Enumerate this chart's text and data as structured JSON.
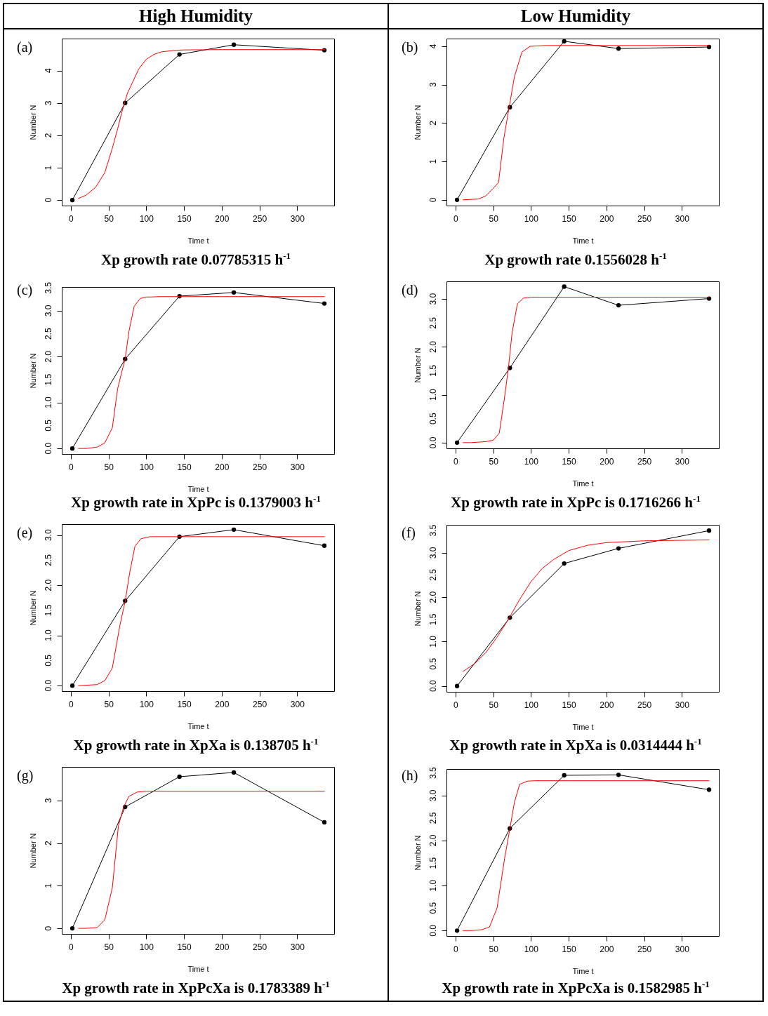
{
  "chart_data": [
    {
      "type": "line",
      "title": "High Humidity",
      "xlabel": "Time t",
      "ylabel": "Number N",
      "annotations": [
        "(a)",
        "Xp growth rate 0.07785315 h$^{-1}$"
      ],
      "xlim": [
        -12,
        349
      ],
      "xticks": [
        0,
        50,
        100,
        150,
        200,
        250,
        300
      ],
      "ylim": [
        -0.17,
        4.99
      ],
      "yticks": [
        0,
        1,
        2,
        3,
        4
      ],
      "series": [
        {
          "color": "#000000",
          "marker": "circle",
          "x": [
            2,
            72,
            144,
            216,
            336
          ],
          "values": [
            0,
            3.0,
            4.5,
            4.8,
            4.63
          ]
        },
        {
          "color": "#ff0000",
          "marker": "none",
          "x": [
            10,
            20,
            33,
            45,
            55,
            62,
            68,
            75,
            80,
            90,
            100,
            110,
            120,
            135,
            150,
            200,
            336
          ],
          "values": [
            0.05,
            0.15,
            0.4,
            0.85,
            1.6,
            2.2,
            2.75,
            3.3,
            3.55,
            4.05,
            4.35,
            4.5,
            4.58,
            4.62,
            4.64,
            4.65,
            4.65
          ]
        }
      ]
    },
    {
      "type": "line",
      "title": "Low Humidity",
      "xlabel": "Time t",
      "ylabel": "Number N",
      "annotations": [
        "(b)",
        "Xp growth rate 0.1556028 h$^{-1}$"
      ],
      "xlim": [
        -12,
        349
      ],
      "xticks": [
        0,
        50,
        100,
        150,
        200,
        250,
        300
      ],
      "ylim": [
        -0.15,
        4.2
      ],
      "yticks": [
        0,
        1,
        2,
        3,
        4
      ],
      "series": [
        {
          "color": "#000000",
          "marker": "circle",
          "x": [
            2,
            72,
            144,
            216,
            336
          ],
          "values": [
            0,
            2.41,
            4.13,
            3.94,
            3.98
          ]
        },
        {
          "color": "#ff0000",
          "marker": "none",
          "x": [
            10,
            30,
            40,
            50,
            57,
            64,
            71,
            78,
            88,
            99,
            120,
            200,
            336
          ],
          "values": [
            0,
            0.02,
            0.1,
            0.3,
            0.45,
            1.6,
            2.4,
            3.2,
            3.85,
            4.0,
            4.02,
            4.02,
            4.02
          ]
        }
      ]
    },
    {
      "type": "line",
      "xlabel": "Time t",
      "ylabel": "Number N",
      "annotations": [
        "(c)",
        "Xp growth rate in XpPc is 0.1379003 h$^{-1}$"
      ],
      "xlim": [
        -12,
        349
      ],
      "xticks": [
        0,
        50,
        100,
        150,
        200,
        250,
        300
      ],
      "ylim": [
        -0.12,
        3.52
      ],
      "yticks": [
        {
          "value": 0,
          "label": "0.0"
        },
        0.5,
        {
          "value": 1,
          "label": "1.0"
        },
        1.5,
        {
          "value": 2,
          "label": "2.0"
        },
        2.5,
        {
          "value": 3,
          "label": "3.0"
        },
        3.5
      ],
      "series": [
        {
          "color": "#000000",
          "marker": "circle",
          "x": [
            2,
            72,
            144,
            216,
            336
          ],
          "values": [
            0,
            1.95,
            3.32,
            3.4,
            3.16
          ]
        },
        {
          "color": "#ff0000",
          "marker": "none",
          "x": [
            10,
            20,
            35,
            45,
            55,
            62,
            68,
            72,
            77,
            84,
            92,
            100,
            120,
            200,
            336
          ],
          "values": [
            0,
            0,
            0.03,
            0.12,
            0.45,
            1.3,
            1.7,
            1.95,
            2.55,
            3.1,
            3.27,
            3.3,
            3.31,
            3.31,
            3.31
          ]
        }
      ]
    },
    {
      "type": "line",
      "xlabel": "Time t",
      "ylabel": "Number N",
      "annotations": [
        "(d)",
        "Xp growth rate in XpPc is 0.1716266 h$^{-1}$"
      ],
      "xlim": [
        -12,
        349
      ],
      "xticks": [
        0,
        50,
        100,
        150,
        200,
        250,
        300
      ],
      "ylim": [
        -0.12,
        3.37
      ],
      "yticks": [
        {
          "value": 0,
          "label": "0.0"
        },
        0.5,
        {
          "value": 1,
          "label": "1.0"
        },
        1.5,
        {
          "value": 2,
          "label": "2.0"
        },
        2.5,
        {
          "value": 3,
          "label": "3.0"
        }
      ],
      "series": [
        {
          "color": "#000000",
          "marker": "circle",
          "x": [
            2,
            72,
            144,
            216,
            336
          ],
          "values": [
            0,
            1.56,
            3.26,
            2.87,
            3.01
          ]
        },
        {
          "color": "#ff0000",
          "marker": "none",
          "x": [
            10,
            20,
            40,
            50,
            58,
            65,
            70,
            75,
            82,
            90,
            100,
            150,
            336
          ],
          "values": [
            0,
            0,
            0.02,
            0.05,
            0.2,
            0.95,
            1.55,
            2.3,
            2.9,
            3.02,
            3.04,
            3.04,
            3.04
          ]
        }
      ]
    },
    {
      "type": "line",
      "xlabel": "Time t",
      "ylabel": "Number N",
      "annotations": [
        "(e)",
        "Xp growth rate in XpXa is 0.138705 h$^{-1}$"
      ],
      "xlim": [
        -12,
        349
      ],
      "xticks": [
        0,
        50,
        100,
        150,
        200,
        250,
        300
      ],
      "ylim": [
        -0.11,
        3.22
      ],
      "yticks": [
        {
          "value": 0,
          "label": "0.0"
        },
        0.5,
        {
          "value": 1,
          "label": "1.0"
        },
        1.5,
        {
          "value": 2,
          "label": "2.0"
        },
        2.5,
        {
          "value": 3,
          "label": "3.0"
        }
      ],
      "series": [
        {
          "color": "#000000",
          "marker": "circle",
          "x": [
            2,
            72,
            144,
            216,
            336
          ],
          "values": [
            0,
            1.69,
            2.97,
            3.11,
            2.79
          ]
        },
        {
          "color": "#ff0000",
          "marker": "none",
          "x": [
            10,
            35,
            45,
            55,
            65,
            72,
            78,
            85,
            93,
            105,
            150,
            336
          ],
          "values": [
            0,
            0.02,
            0.1,
            0.35,
            1.2,
            1.68,
            2.25,
            2.78,
            2.93,
            2.97,
            2.97,
            2.97
          ]
        }
      ]
    },
    {
      "type": "line",
      "xlabel": "Time t",
      "ylabel": "Number N",
      "annotations": [
        "(f)",
        "Xp growth rate in XpXa is 0.0314444 h$^{-1}$"
      ],
      "xlim": [
        -12,
        349
      ],
      "xticks": [
        0,
        50,
        100,
        150,
        200,
        250,
        300
      ],
      "ylim": [
        -0.13,
        3.63
      ],
      "yticks": [
        {
          "value": 0,
          "label": "0.0"
        },
        0.5,
        {
          "value": 1,
          "label": "1.0"
        },
        1.5,
        {
          "value": 2,
          "label": "2.0"
        },
        2.5,
        {
          "value": 3,
          "label": "3.0"
        },
        3.5
      ],
      "series": [
        {
          "color": "#000000",
          "marker": "circle",
          "x": [
            2,
            72,
            144,
            216,
            336
          ],
          "values": [
            0,
            1.54,
            2.76,
            3.1,
            3.5
          ]
        },
        {
          "color": "#ff0000",
          "marker": "none",
          "x": [
            10,
            25,
            40,
            55,
            70,
            85,
            100,
            115,
            130,
            150,
            175,
            200,
            250,
            336
          ],
          "values": [
            0.33,
            0.5,
            0.75,
            1.1,
            1.5,
            1.95,
            2.35,
            2.65,
            2.85,
            3.05,
            3.17,
            3.23,
            3.27,
            3.29
          ]
        }
      ]
    },
    {
      "type": "line",
      "xlabel": "Time t",
      "ylabel": "Number N",
      "annotations": [
        "(g)",
        "Xp growth rate in XpPcXa is 0.1783389 h$^{-1}$"
      ],
      "xlim": [
        -12,
        349
      ],
      "xticks": [
        0,
        50,
        100,
        150,
        200,
        250,
        300
      ],
      "ylim": [
        -0.13,
        3.79
      ],
      "yticks": [
        0,
        1,
        2,
        3
      ],
      "series": [
        {
          "color": "#000000",
          "marker": "circle",
          "x": [
            2,
            72,
            144,
            216,
            336
          ],
          "values": [
            0,
            2.85,
            3.56,
            3.66,
            2.49
          ]
        },
        {
          "color": "#ff0000",
          "marker": "none",
          "x": [
            10,
            20,
            35,
            45,
            55,
            63,
            70,
            77,
            88,
            100,
            150,
            336
          ],
          "values": [
            0,
            0,
            0.02,
            0.2,
            0.95,
            2.4,
            2.85,
            3.1,
            3.2,
            3.22,
            3.22,
            3.22
          ]
        }
      ]
    },
    {
      "type": "line",
      "xlabel": "Time t",
      "ylabel": "Number N",
      "annotations": [
        "(h)",
        "Xp growth rate in XpPcXa is 0.1582985 h$^{-1}$"
      ],
      "xlim": [
        -12,
        349
      ],
      "xticks": [
        0,
        50,
        100,
        150,
        200,
        250,
        300
      ],
      "ylim": [
        -0.12,
        3.59
      ],
      "yticks": [
        {
          "value": 0,
          "label": "0.0"
        },
        0.5,
        {
          "value": 1,
          "label": "1.0"
        },
        1.5,
        {
          "value": 2,
          "label": "2.0"
        },
        2.5,
        {
          "value": 3,
          "label": "3.0"
        },
        3.5
      ],
      "series": [
        {
          "color": "#000000",
          "marker": "circle",
          "x": [
            2,
            72,
            144,
            216,
            336
          ],
          "values": [
            0,
            2.27,
            3.45,
            3.46,
            3.13
          ]
        },
        {
          "color": "#ff0000",
          "marker": "none",
          "x": [
            10,
            20,
            35,
            45,
            55,
            65,
            72,
            78,
            85,
            95,
            105,
            150,
            336
          ],
          "values": [
            0,
            0,
            0.02,
            0.08,
            0.5,
            1.6,
            2.26,
            2.85,
            3.25,
            3.32,
            3.33,
            3.33,
            3.33
          ]
        }
      ]
    }
  ]
}
